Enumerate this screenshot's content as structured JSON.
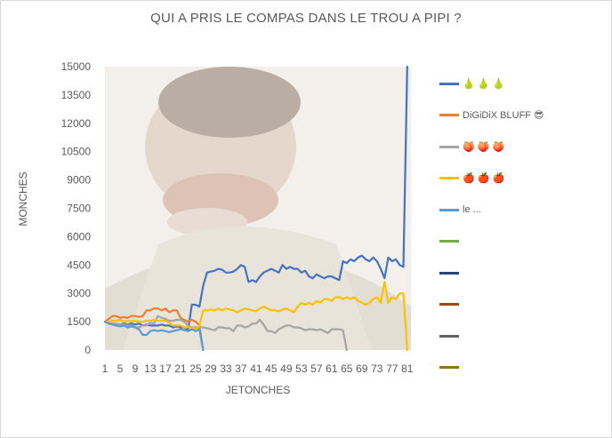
{
  "chart_data": {
    "type": "line",
    "title": "QUI A PRIS LE COMPAS DANS LE TROU  A PIPI ?",
    "xlabel": "JETONCHES",
    "ylabel": "MONCHES",
    "ylim": [
      0,
      15000
    ],
    "y_ticks": [
      0,
      1500,
      3000,
      4500,
      6000,
      7500,
      9000,
      10500,
      12000,
      13500,
      15000
    ],
    "x_ticks": [
      1,
      5,
      9,
      13,
      17,
      21,
      25,
      29,
      33,
      37,
      41,
      45,
      49,
      53,
      57,
      61,
      65,
      69,
      73,
      77,
      81
    ],
    "x_tick_labels_text": "1   5   9  13172125293337414549535761656973 7781",
    "xlim": [
      1,
      82
    ],
    "legend_position": "right",
    "grid": false,
    "series": [
      {
        "name": "🍐 🍐 🍐",
        "color": "#4472c4",
        "values": [
          1500,
          1450,
          1400,
          1350,
          1350,
          1400,
          1350,
          1400,
          1350,
          1400,
          1300,
          1350,
          1300,
          1300,
          1300,
          1350,
          1300,
          1300,
          1200,
          1250,
          1200,
          1200,
          1050,
          2400,
          2400,
          2300,
          3400,
          4100,
          4150,
          4200,
          4300,
          4250,
          4100,
          4100,
          4150,
          4300,
          4500,
          4400,
          3600,
          3700,
          3600,
          3900,
          4100,
          4200,
          4300,
          4200,
          4100,
          4500,
          4300,
          4400,
          4300,
          4300,
          4100,
          4200,
          3900,
          3800,
          4000,
          3900,
          3800,
          3900,
          3900,
          3800,
          3700,
          4700,
          4600,
          4800,
          4700,
          4900,
          5000,
          4800,
          4700,
          4900,
          4700,
          4300,
          3800,
          4900,
          4700,
          4800,
          4500,
          4400,
          15000
        ]
      },
      {
        "name": "DiGiDiX BLUFF 😎",
        "color": "#ed7d31",
        "values": [
          1500,
          1650,
          1800,
          1800,
          1700,
          1750,
          1700,
          1800,
          1800,
          1750,
          1800,
          2100,
          2100,
          2200,
          2200,
          2100,
          2200,
          2000,
          2100,
          2100,
          1700,
          1600,
          1500,
          1600,
          1500,
          1300,
          0
        ]
      },
      {
        "name": "🍑 🍑 🍑",
        "color": "#a5a5a5",
        "values": [
          1500,
          1450,
          1400,
          1400,
          1350,
          1350,
          1300,
          1300,
          1200,
          1200,
          1300,
          1300,
          1450,
          1400,
          1800,
          1700,
          1650,
          1550,
          1550,
          1600,
          1600,
          1500,
          1300,
          1200,
          1200,
          1200,
          1200,
          1150,
          1100,
          1050,
          1200,
          1200,
          1150,
          1150,
          1000,
          1300,
          1300,
          1200,
          1250,
          1400,
          1400,
          1600,
          1350,
          1000,
          1000,
          900,
          1100,
          1200,
          1300,
          1300,
          1200,
          1200,
          1150,
          1050,
          1100,
          1100,
          1050,
          1100,
          1000,
          900,
          1100,
          1100,
          1100,
          1050,
          0
        ]
      },
      {
        "name": "🍎 🍎 🍎",
        "color": "#ffc000",
        "values": [
          1500,
          1500,
          1550,
          1550,
          1600,
          1500,
          1550,
          1500,
          1550,
          1500,
          1500,
          1550,
          1550,
          1600,
          1550,
          1550,
          1550,
          1450,
          1300,
          1300,
          1300,
          1200,
          1200,
          1200,
          1100,
          1300,
          2100,
          2100,
          2150,
          2100,
          2200,
          2100,
          2200,
          2150,
          2100,
          2000,
          2100,
          2200,
          2150,
          2100,
          2050,
          2200,
          2300,
          2200,
          2100,
          2100,
          2050,
          2150,
          2200,
          2100,
          2000,
          2300,
          2500,
          2400,
          2500,
          2400,
          2600,
          2500,
          2700,
          2700,
          2600,
          2800,
          2800,
          2700,
          2800,
          2700,
          2800,
          2600,
          2500,
          2400,
          2500,
          2700,
          2800,
          2500,
          3600,
          2500,
          2800,
          2700,
          3000,
          3000,
          0
        ]
      },
      {
        "name": "le ...",
        "color": "#5b9bd5",
        "values": [
          1500,
          1400,
          1350,
          1300,
          1250,
          1300,
          1200,
          1250,
          1200,
          1100,
          800,
          800,
          1000,
          1050,
          1000,
          1050,
          1000,
          950,
          1000,
          1050,
          1100,
          1050,
          1000,
          1100,
          1000,
          1100,
          0
        ]
      },
      {
        "name": "",
        "color": "#70ad47",
        "values": []
      },
      {
        "name": "",
        "color": "#264478",
        "values": []
      },
      {
        "name": "",
        "color": "#9e480e",
        "values": []
      },
      {
        "name": "",
        "color": "#636363",
        "values": []
      },
      {
        "name": "",
        "color": "#997300",
        "values": []
      }
    ]
  }
}
